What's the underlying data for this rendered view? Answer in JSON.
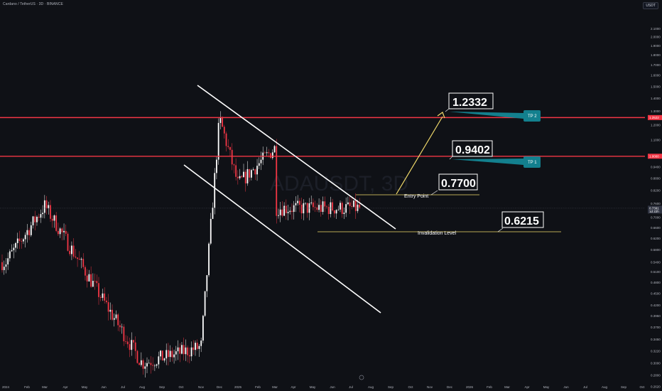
{
  "header": {
    "symbol": "Cardano / TetherUS · 3D · BINANCE",
    "currency": "USDT"
  },
  "watermark": "ADAUSDT, 3D",
  "chart_data": {
    "type": "candlestick",
    "scale": "log",
    "ylim": [
      0.2661,
      2.4
    ],
    "y_ticks": [
      "2.1000",
      "2.0000",
      "1.9000",
      "1.8000",
      "1.7000",
      "1.6000",
      "1.5000",
      "1.4000",
      "1.3000",
      "1.2000",
      "1.1000",
      "1.0000",
      "0.9400",
      "0.8800",
      "0.8200",
      "0.7600",
      "0.7000",
      "0.6600",
      "0.6200",
      "0.5800",
      "0.5400",
      "0.5100",
      "0.4800",
      "0.4500",
      "0.4200",
      "0.3950",
      "0.3700",
      "0.3450",
      "0.3220",
      "0.3000",
      "0.2800",
      "0.2620",
      "0.2420"
    ],
    "x_ticks": [
      {
        "label": "2024",
        "x": 8
      },
      {
        "label": "Feb",
        "x": 38
      },
      {
        "label": "Mar",
        "x": 63
      },
      {
        "label": "Apr",
        "x": 92
      },
      {
        "label": "May",
        "x": 119
      },
      {
        "label": "Jun",
        "x": 146
      },
      {
        "label": "Jul",
        "x": 173
      },
      {
        "label": "Aug",
        "x": 200
      },
      {
        "label": "Sep",
        "x": 228
      },
      {
        "label": "Oct",
        "x": 255
      },
      {
        "label": "Nov",
        "x": 283
      },
      {
        "label": "Dec",
        "x": 309
      },
      {
        "label": "2025",
        "x": 335
      },
      {
        "label": "Feb",
        "x": 363
      },
      {
        "label": "Mar",
        "x": 387
      },
      {
        "label": "Apr",
        "x": 413
      },
      {
        "label": "May",
        "x": 440
      },
      {
        "label": "Jun",
        "x": 468
      },
      {
        "label": "Jul",
        "x": 494
      },
      {
        "label": "Aug",
        "x": 522
      },
      {
        "label": "Sep",
        "x": 550
      },
      {
        "label": "Oct",
        "x": 578
      },
      {
        "label": "Nov",
        "x": 605
      },
      {
        "label": "Dec",
        "x": 633
      },
      {
        "label": "2026",
        "x": 661
      },
      {
        "label": "Feb",
        "x": 689
      },
      {
        "label": "Mar",
        "x": 714
      },
      {
        "label": "Apr",
        "x": 742
      },
      {
        "label": "May",
        "x": 769
      },
      {
        "label": "Jun",
        "x": 797
      },
      {
        "label": "Jul",
        "x": 824
      },
      {
        "label": "Aug",
        "x": 851
      },
      {
        "label": "Sep",
        "x": 878
      },
      {
        "label": "Oct",
        "x": 904
      }
    ],
    "price_labels": [
      {
        "text": "1.2522",
        "value": 1.2522,
        "color": "#f23645"
      },
      {
        "text": "1.0000",
        "value": 1.0,
        "color": "#f23645"
      },
      {
        "text": "0.7391",
        "value": 0.7391,
        "color": "#2f3341",
        "sub": "1d 22h"
      }
    ],
    "anchors": [
      {
        "label": "2024",
        "value": 0.54
      },
      {
        "label": "Mar",
        "value": 0.75
      },
      {
        "label": "Aug",
        "value": 0.3
      },
      {
        "label": "Nov",
        "value": 0.33
      },
      {
        "label": "Dec",
        "value": 1.25
      },
      {
        "label": "2025",
        "value": 0.85
      },
      {
        "label": "Mar",
        "value": 1.05
      },
      {
        "label": "Apr",
        "value": 0.55
      },
      {
        "label": "May",
        "value": 0.82
      },
      {
        "label": "Jun",
        "value": 0.54
      },
      {
        "label": "Jul",
        "value": 0.74
      }
    ],
    "levels": [
      {
        "name": "resistance",
        "value": 1.2522,
        "color": "#f23645"
      },
      {
        "name": "resistance",
        "value": 1.0,
        "color": "#f23645"
      }
    ]
  },
  "annotations": {
    "entry_label": "Entry Point",
    "entry_value": "0.7700",
    "invalidation_label": "Invalidation Level",
    "invalidation_value": "0.6215",
    "tp1_value": "0.9402",
    "tp2_value": "1.2332",
    "tp1_label": "TP 1",
    "tp2_label": "TP 2"
  },
  "colors": {
    "background": "#0f1116",
    "up": "#ffffff",
    "down": "#f23645",
    "resistance": "#f23645",
    "channel": "#ffffff",
    "annotation": "#f0d96a",
    "tp": "#13808e"
  }
}
